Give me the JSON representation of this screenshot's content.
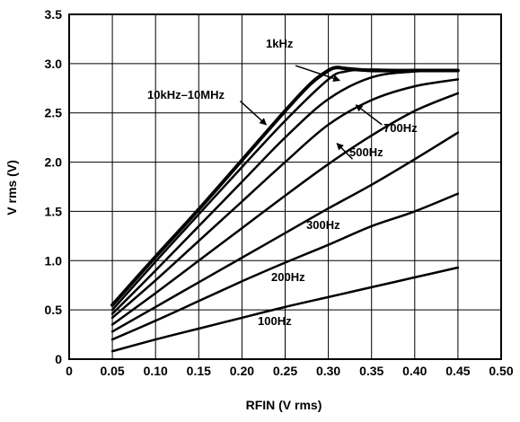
{
  "chart_data": {
    "type": "line",
    "title": "",
    "xlabel": "RFIN (V rms)",
    "ylabel": "V rms (V)",
    "xlim": [
      0,
      0.5
    ],
    "ylim": [
      0,
      3.5
    ],
    "xticks": [
      0,
      0.05,
      0.1,
      0.15,
      0.2,
      0.25,
      0.3,
      0.35,
      0.4,
      0.45,
      0.5
    ],
    "yticks": [
      0,
      0.5,
      1.0,
      1.5,
      2.0,
      2.5,
      3.0,
      3.5
    ],
    "xtick_labels": [
      "0",
      "0.05",
      "0.10",
      "0.15",
      "0.20",
      "0.25",
      "0.30",
      "0.35",
      "0.40",
      "0.45",
      "0.50"
    ],
    "ytick_labels": [
      "0",
      "0.5",
      "1.0",
      "1.5",
      "2.0",
      "2.5",
      "3.0",
      "3.5"
    ],
    "grid": true,
    "legend": "none",
    "series": [
      {
        "name": "10kHz–10MHz",
        "x": [
          0.05,
          0.1,
          0.15,
          0.2,
          0.25,
          0.28,
          0.3,
          0.31,
          0.32,
          0.35,
          0.4,
          0.45
        ],
        "y": [
          0.55,
          1.04,
          1.52,
          2.02,
          2.52,
          2.8,
          2.93,
          2.96,
          2.95,
          2.93,
          2.93,
          2.93
        ]
      },
      {
        "name": "1kHz",
        "x": [
          0.05,
          0.1,
          0.15,
          0.2,
          0.25,
          0.3,
          0.32,
          0.35,
          0.4,
          0.45
        ],
        "y": [
          0.5,
          0.99,
          1.47,
          1.95,
          2.42,
          2.84,
          2.92,
          2.94,
          2.93,
          2.93
        ]
      },
      {
        "name": "",
        "x": [
          0.05,
          0.1,
          0.15,
          0.2,
          0.25,
          0.3,
          0.35,
          0.4,
          0.45
        ],
        "y": [
          0.46,
          0.9,
          1.35,
          1.8,
          2.25,
          2.64,
          2.86,
          2.92,
          2.93
        ]
      },
      {
        "name": "700Hz",
        "x": [
          0.05,
          0.1,
          0.15,
          0.2,
          0.25,
          0.3,
          0.35,
          0.4,
          0.45
        ],
        "y": [
          0.42,
          0.8,
          1.2,
          1.6,
          2.0,
          2.38,
          2.63,
          2.77,
          2.84
        ]
      },
      {
        "name": "500Hz",
        "x": [
          0.05,
          0.1,
          0.15,
          0.2,
          0.25,
          0.3,
          0.35,
          0.4,
          0.45
        ],
        "y": [
          0.35,
          0.67,
          1.0,
          1.33,
          1.66,
          1.98,
          2.27,
          2.52,
          2.7
        ]
      },
      {
        "name": "300Hz",
        "x": [
          0.05,
          0.1,
          0.15,
          0.2,
          0.25,
          0.3,
          0.35,
          0.4,
          0.45
        ],
        "y": [
          0.28,
          0.53,
          0.78,
          1.03,
          1.28,
          1.53,
          1.77,
          2.03,
          2.3
        ]
      },
      {
        "name": "200Hz",
        "x": [
          0.05,
          0.1,
          0.15,
          0.2,
          0.25,
          0.3,
          0.35,
          0.4,
          0.45
        ],
        "y": [
          0.2,
          0.39,
          0.59,
          0.79,
          0.98,
          1.16,
          1.35,
          1.5,
          1.68
        ]
      },
      {
        "name": "100Hz",
        "x": [
          0.05,
          0.1,
          0.15,
          0.2,
          0.25,
          0.3,
          0.35,
          0.4,
          0.45
        ],
        "y": [
          0.08,
          0.2,
          0.31,
          0.42,
          0.53,
          0.63,
          0.73,
          0.83,
          0.93
        ]
      }
    ],
    "annotations": [
      {
        "text": "1kHz"
      },
      {
        "text": "10kHz–10MHz"
      },
      {
        "text": "700Hz"
      },
      {
        "text": "500Hz"
      },
      {
        "text": "300Hz"
      },
      {
        "text": "200Hz"
      },
      {
        "text": "100Hz"
      }
    ]
  }
}
